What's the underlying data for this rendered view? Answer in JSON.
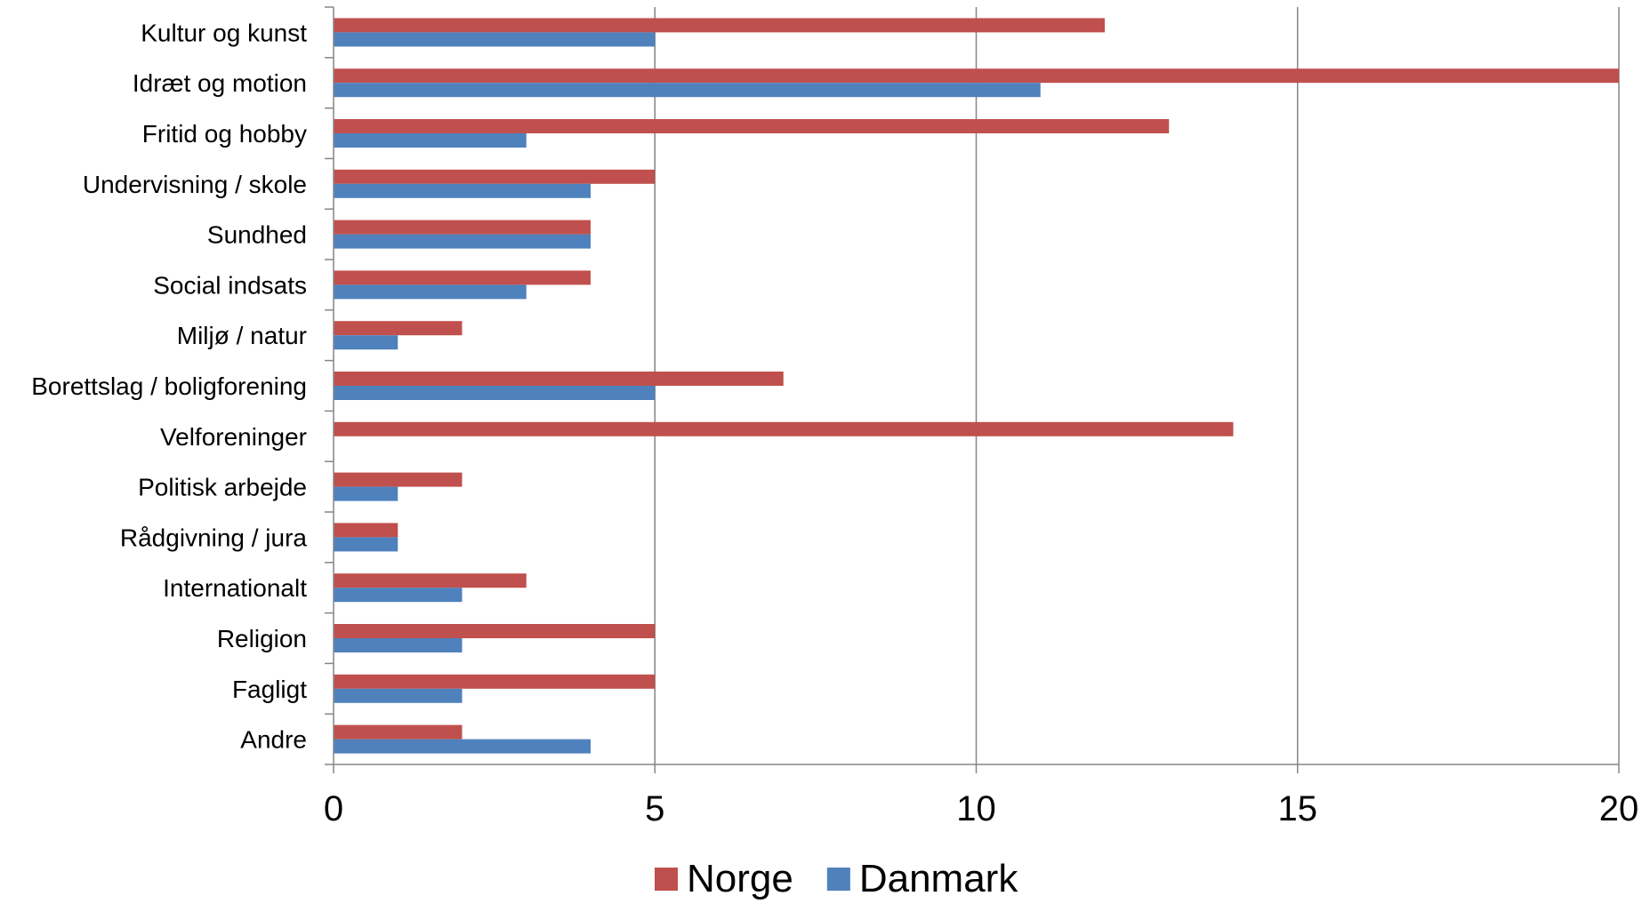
{
  "chart_data": {
    "type": "bar",
    "orientation": "horizontal",
    "categories": [
      "Kultur og kunst",
      "Idræt og motion",
      "Fritid og hobby",
      "Undervisning / skole",
      "Sundhed",
      "Social indsats",
      "Miljø / natur",
      "Borettslag / boligforening",
      "Velforeninger",
      "Politisk arbejde",
      "Rådgivning / jura",
      "Internationalt",
      "Religion",
      "Fagligt",
      "Andre"
    ],
    "series": [
      {
        "name": "Norge",
        "color": "#C0504D",
        "values": [
          12,
          20,
          13,
          5,
          4,
          4,
          2,
          7,
          14,
          2,
          1,
          3,
          5,
          5,
          2
        ]
      },
      {
        "name": "Danmark",
        "color": "#4F81BD",
        "values": [
          5,
          11,
          3,
          4,
          4,
          3,
          1,
          5,
          0,
          1,
          1,
          2,
          2,
          2,
          4
        ]
      }
    ],
    "xlim": [
      0,
      20
    ],
    "xticks": [
      "0",
      "5",
      "10",
      "15",
      "20"
    ],
    "grid": true,
    "legend_position": "bottom",
    "title": "",
    "xlabel": "",
    "ylabel": ""
  }
}
